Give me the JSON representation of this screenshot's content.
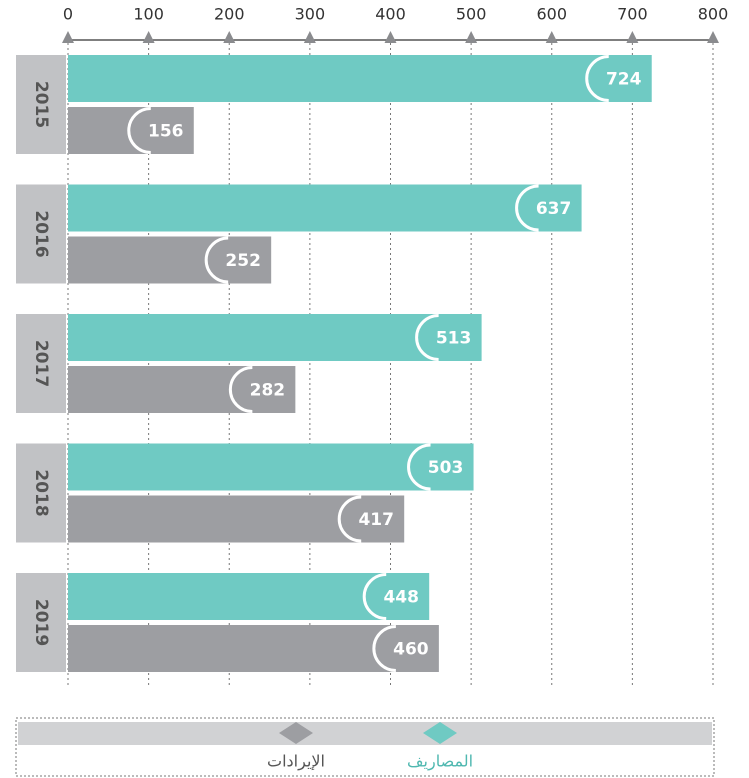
{
  "chart_data": {
    "type": "bar",
    "orientation": "horizontal",
    "categories": [
      "2015",
      "2016",
      "2017",
      "2018",
      "2019"
    ],
    "series": [
      {
        "name": "المصاريف",
        "color": "#6fcac3",
        "values": [
          724,
          637,
          513,
          503,
          448
        ]
      },
      {
        "name": "الإيرادات",
        "color": "#9d9ea2",
        "values": [
          156,
          252,
          282,
          417,
          460
        ]
      }
    ],
    "xlim": [
      0,
      800
    ],
    "xticks": [
      0,
      100,
      200,
      300,
      400,
      500,
      600,
      700,
      800
    ],
    "grid": true
  }
}
